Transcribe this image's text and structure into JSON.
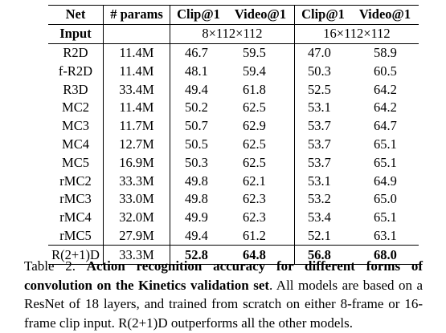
{
  "table": {
    "header": {
      "net": "Net",
      "params": "# params",
      "clip1": "Clip@1",
      "video1": "Video@1",
      "clip2": "Clip@1",
      "video2": "Video@1"
    },
    "input_row": {
      "label": "Input",
      "input8": "8×112×112",
      "input16": "16×112×112"
    },
    "rows": [
      {
        "net": "R2D",
        "params": "11.4M",
        "clip8": "46.7",
        "video8": "59.5",
        "clip16": "47.0",
        "video16": "58.9"
      },
      {
        "net": "f-R2D",
        "params": "11.4M",
        "clip8": "48.1",
        "video8": "59.4",
        "clip16": "50.3",
        "video16": "60.5"
      },
      {
        "net": "R3D",
        "params": "33.4M",
        "clip8": "49.4",
        "video8": "61.8",
        "clip16": "52.5",
        "video16": "64.2"
      },
      {
        "net": "MC2",
        "params": "11.4M",
        "clip8": "50.2",
        "video8": "62.5",
        "clip16": "53.1",
        "video16": "64.2"
      },
      {
        "net": "MC3",
        "params": "11.7M",
        "clip8": "50.7",
        "video8": "62.9",
        "clip16": "53.7",
        "video16": "64.7"
      },
      {
        "net": "MC4",
        "params": "12.7M",
        "clip8": "50.5",
        "video8": "62.5",
        "clip16": "53.7",
        "video16": "65.1"
      },
      {
        "net": "MC5",
        "params": "16.9M",
        "clip8": "50.3",
        "video8": "62.5",
        "clip16": "53.7",
        "video16": "65.1"
      },
      {
        "net": "rMC2",
        "params": "33.3M",
        "clip8": "49.8",
        "video8": "62.1",
        "clip16": "53.1",
        "video16": "64.9"
      },
      {
        "net": "rMC3",
        "params": "33.0M",
        "clip8": "49.8",
        "video8": "62.3",
        "clip16": "53.2",
        "video16": "65.0"
      },
      {
        "net": "rMC4",
        "params": "32.0M",
        "clip8": "49.9",
        "video8": "62.3",
        "clip16": "53.4",
        "video16": "65.1"
      },
      {
        "net": "rMC5",
        "params": "27.9M",
        "clip8": "49.4",
        "video8": "61.2",
        "clip16": "52.1",
        "video16": "63.1"
      }
    ],
    "last_row": {
      "net": "R(2+1)D",
      "params": "33.3M",
      "clip8": "52.8",
      "video8": "64.8",
      "clip16": "56.8",
      "video16": "68.0"
    }
  },
  "caption": {
    "prefix": "Table 2.",
    "bold": "Action recognition accuracy for different forms of convolution on the Kinetics validation set",
    "rest": ". All models are based on a ResNet of 18 layers, and trained from scratch on either 8-frame or 16-frame clip input. R(2+1)D outperforms all the other models."
  }
}
